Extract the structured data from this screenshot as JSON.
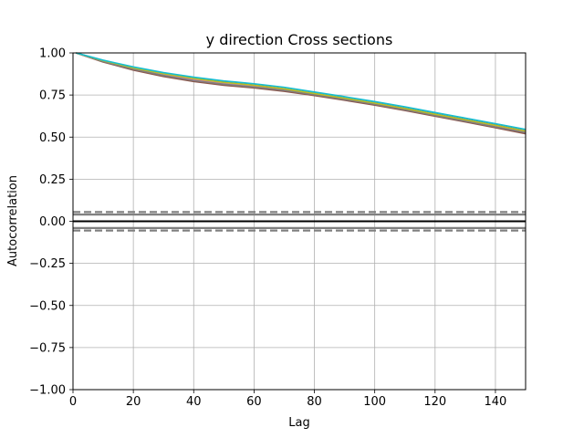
{
  "chart_data": {
    "type": "line",
    "title": "y direction Cross sections",
    "xlabel": "Lag",
    "ylabel": "Autocorrelation",
    "xlim": [
      0,
      150
    ],
    "ylim": [
      -1.0,
      1.0
    ],
    "grid": true,
    "legend": "none",
    "xticks": [
      0,
      20,
      40,
      60,
      80,
      100,
      120,
      140
    ],
    "xtick_labels": [
      "0",
      "20",
      "40",
      "60",
      "80",
      "100",
      "120",
      "140"
    ],
    "yticks": [
      -1.0,
      -0.75,
      -0.5,
      -0.25,
      0.0,
      0.25,
      0.5,
      0.75,
      1.0
    ],
    "ytick_labels": [
      "−1.00",
      "−0.75",
      "−0.50",
      "−0.25",
      "0.00",
      "0.25",
      "0.50",
      "0.75",
      "1.00"
    ],
    "reference_lines": {
      "zero": {
        "y": 0.0,
        "color": "#000000",
        "style": "solid"
      },
      "inner_bounds": {
        "y": [
          0.04,
          -0.04
        ],
        "color": "#808080",
        "style": "solid"
      },
      "outer_bounds": {
        "y": [
          0.055,
          -0.055
        ],
        "color": "#808080",
        "style": "dashed"
      }
    },
    "x": [
      1,
      10,
      20,
      30,
      40,
      50,
      60,
      70,
      80,
      90,
      100,
      110,
      120,
      130,
      140,
      150
    ],
    "series": [
      {
        "color": "#1f77b4",
        "values": [
          1.0,
          0.955,
          0.913,
          0.878,
          0.85,
          0.827,
          0.81,
          0.788,
          0.76,
          0.732,
          0.703,
          0.672,
          0.638,
          0.605,
          0.572,
          0.538
        ]
      },
      {
        "color": "#ff7f0e",
        "values": [
          1.0,
          0.95,
          0.904,
          0.867,
          0.838,
          0.816,
          0.8,
          0.78,
          0.753,
          0.725,
          0.696,
          0.664,
          0.63,
          0.596,
          0.562,
          0.528
        ]
      },
      {
        "color": "#2ca02c",
        "values": [
          1.0,
          0.952,
          0.908,
          0.872,
          0.843,
          0.82,
          0.804,
          0.783,
          0.756,
          0.728,
          0.699,
          0.667,
          0.633,
          0.599,
          0.565,
          0.531
        ]
      },
      {
        "color": "#d62728",
        "values": [
          1.0,
          0.948,
          0.901,
          0.864,
          0.834,
          0.812,
          0.796,
          0.776,
          0.75,
          0.722,
          0.693,
          0.661,
          0.627,
          0.593,
          0.559,
          0.525
        ]
      },
      {
        "color": "#9467bd",
        "values": [
          1.0,
          0.953,
          0.91,
          0.874,
          0.846,
          0.823,
          0.807,
          0.786,
          0.758,
          0.73,
          0.701,
          0.669,
          0.635,
          0.601,
          0.567,
          0.533
        ]
      },
      {
        "color": "#8c564b",
        "values": [
          1.0,
          0.946,
          0.898,
          0.86,
          0.83,
          0.808,
          0.792,
          0.772,
          0.747,
          0.719,
          0.69,
          0.658,
          0.624,
          0.59,
          0.556,
          0.52
        ]
      },
      {
        "color": "#e377c2",
        "values": [
          1.0,
          0.951,
          0.906,
          0.87,
          0.841,
          0.818,
          0.802,
          0.781,
          0.754,
          0.726,
          0.697,
          0.665,
          0.631,
          0.597,
          0.563,
          0.529
        ]
      },
      {
        "color": "#7f7f7f",
        "values": [
          1.0,
          0.949,
          0.903,
          0.866,
          0.836,
          0.814,
          0.798,
          0.778,
          0.752,
          0.724,
          0.695,
          0.663,
          0.629,
          0.595,
          0.561,
          0.527
        ]
      },
      {
        "color": "#bcbd22",
        "values": [
          1.0,
          0.954,
          0.911,
          0.876,
          0.848,
          0.825,
          0.808,
          0.787,
          0.759,
          0.731,
          0.702,
          0.67,
          0.636,
          0.603,
          0.57,
          0.536
        ]
      },
      {
        "color": "#17becf",
        "values": [
          1.0,
          0.957,
          0.917,
          0.883,
          0.856,
          0.834,
          0.817,
          0.796,
          0.768,
          0.74,
          0.711,
          0.68,
          0.646,
          0.613,
          0.58,
          0.546
        ]
      }
    ]
  }
}
